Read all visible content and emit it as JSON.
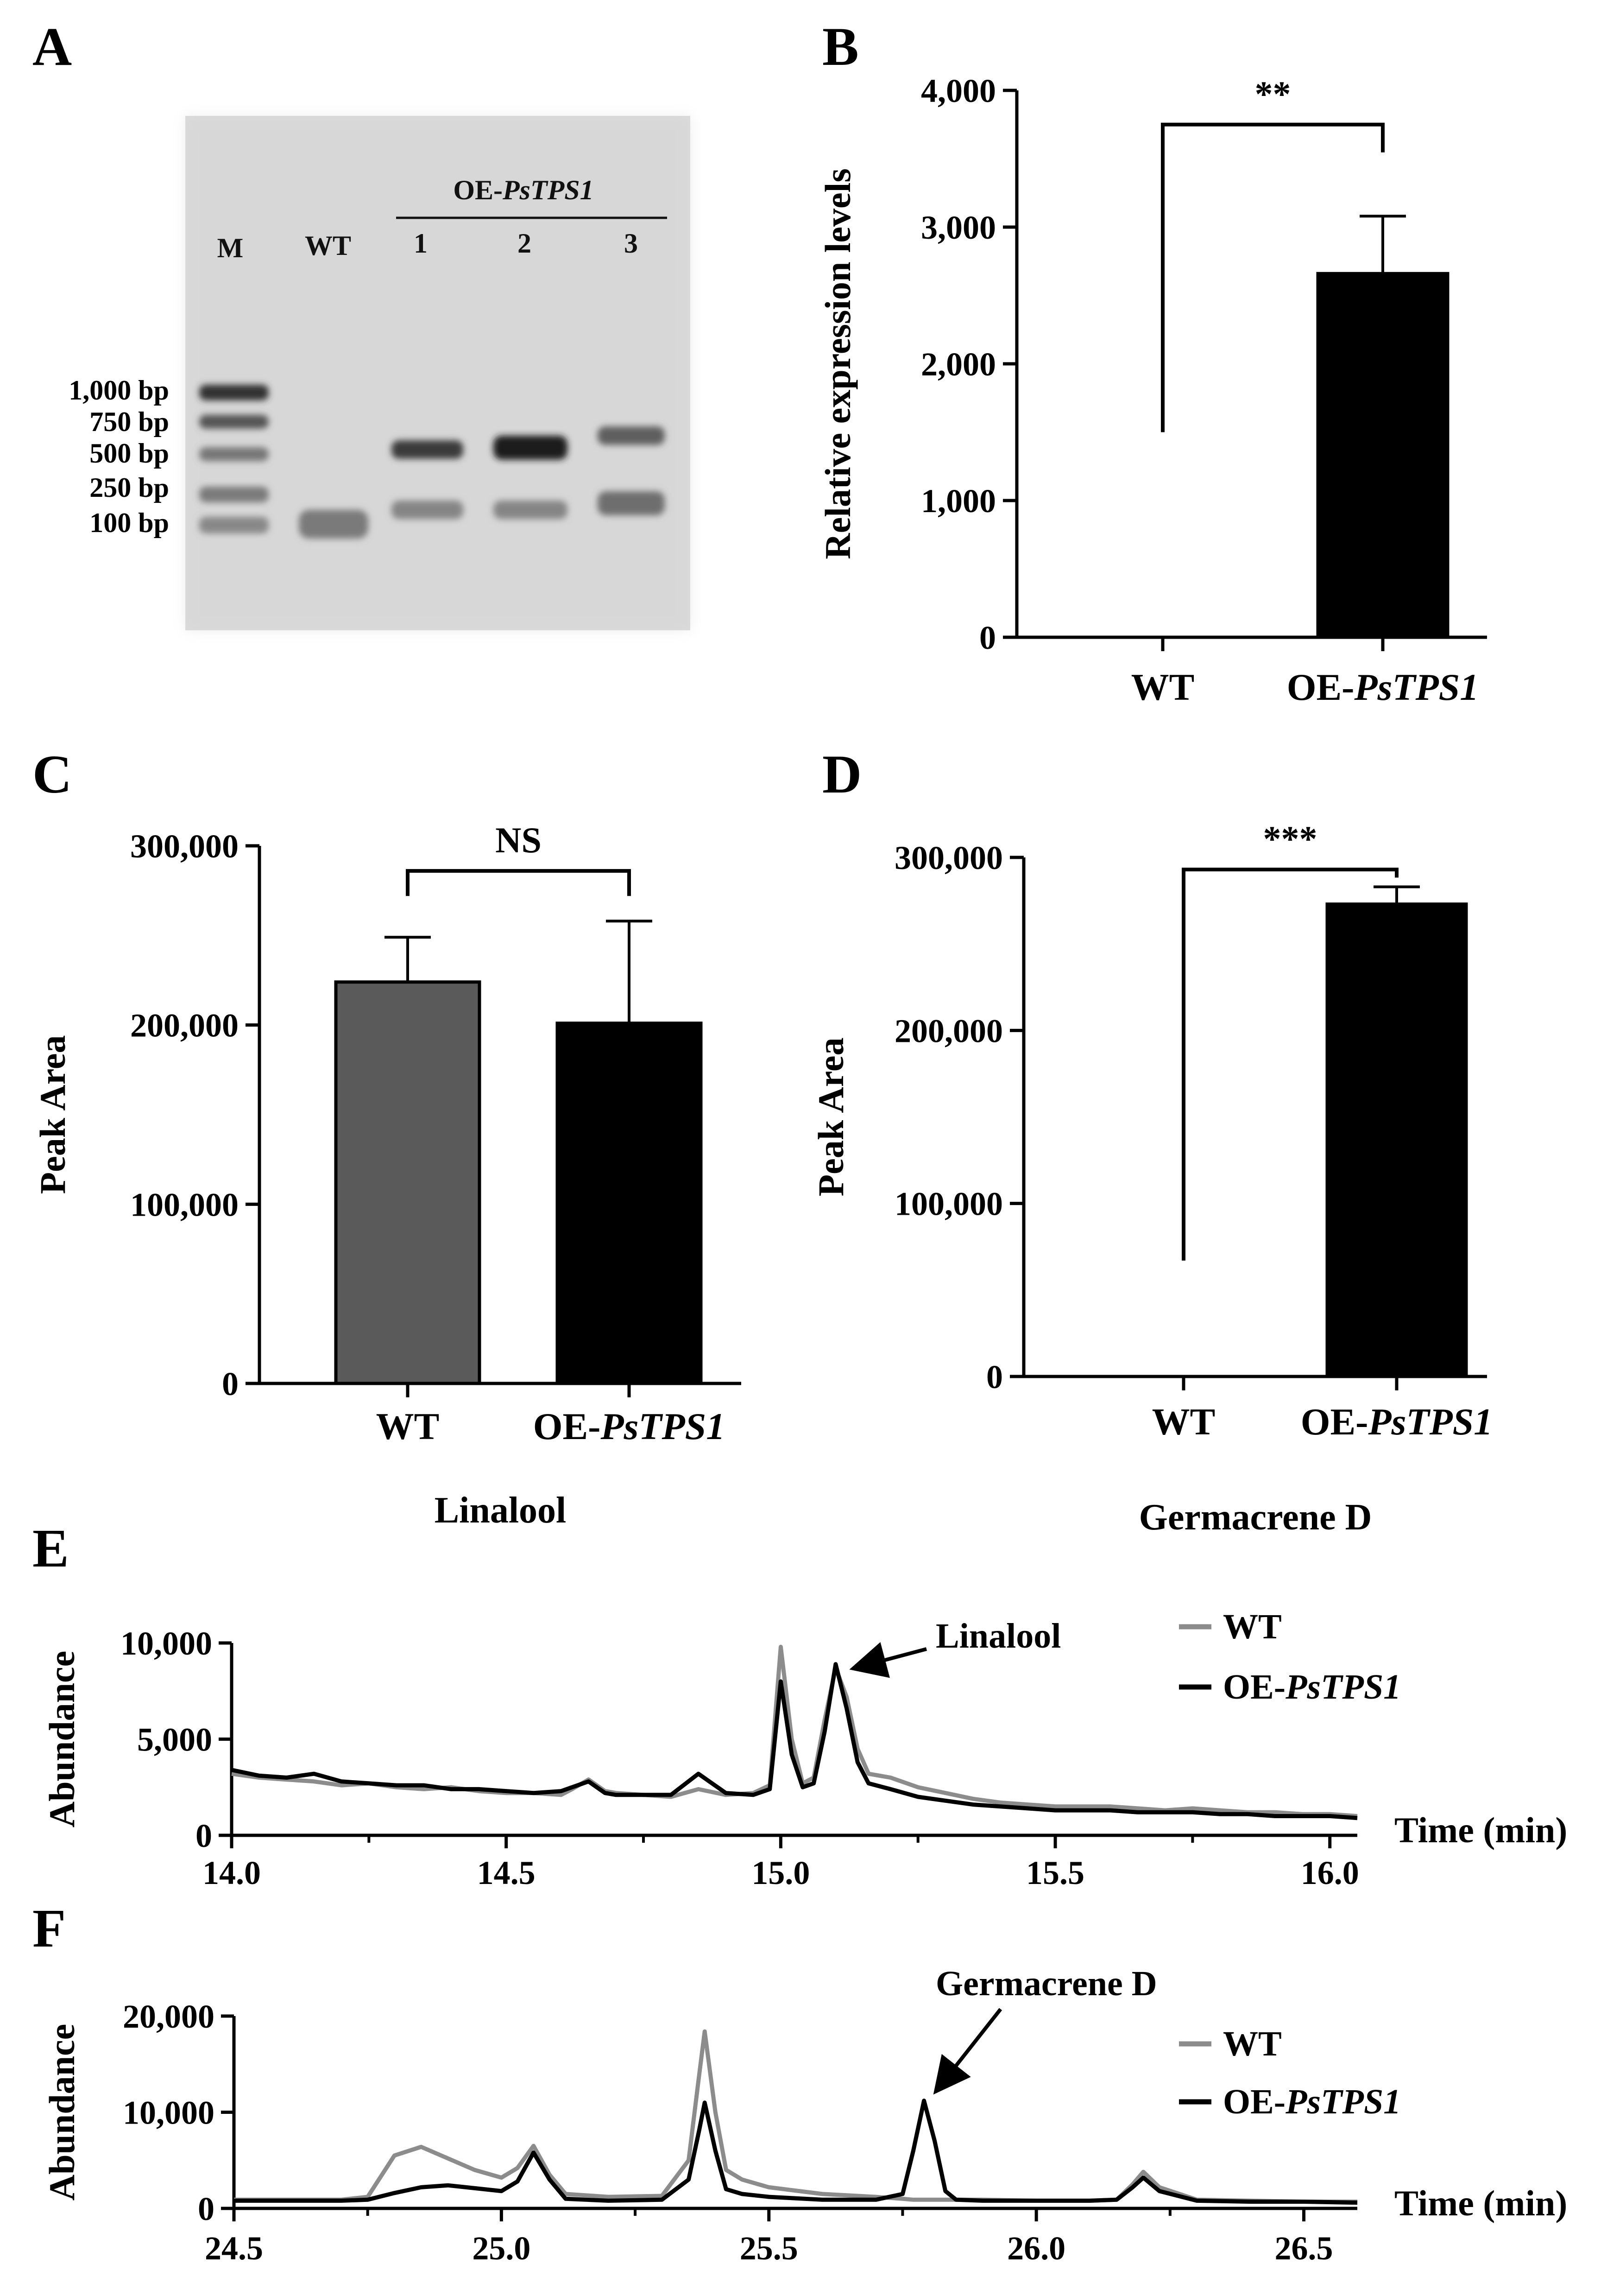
{
  "panels": {
    "A": {
      "letter": "A"
    },
    "B": {
      "letter": "B"
    },
    "C": {
      "letter": "C"
    },
    "D": {
      "letter": "D"
    },
    "E": {
      "letter": "E"
    },
    "F": {
      "letter": "F"
    }
  },
  "gel": {
    "lane_labels": [
      "M",
      "WT",
      "1",
      "2",
      "3"
    ],
    "group_label_prefix": "OE-",
    "group_label_gene": "PsTPS1",
    "ladder_labels": [
      "1,000 bp",
      "750 bp",
      "500 bp",
      "250 bp",
      "100 bp"
    ]
  },
  "chart_data": [
    {
      "panel": "B",
      "type": "bar",
      "categories": [
        "WT",
        "OE-PsTPS1"
      ],
      "category_parts": [
        {
          "plain": "WT",
          "italic": ""
        },
        {
          "plain": "OE-",
          "italic": "PsTPS1"
        }
      ],
      "values": [
        0,
        2660
      ],
      "errors": [
        0,
        420
      ],
      "bar_colors": [
        "#000000",
        "#000000"
      ],
      "ylabel": "Relative expression levels",
      "ylim": [
        0,
        4000
      ],
      "yticks": [
        0,
        1000,
        2000,
        3000,
        4000
      ],
      "ytick_labels": [
        "0",
        "1,000",
        "2,000",
        "3,000",
        "4,000"
      ],
      "significance": "**",
      "bracket_left_bottom": 1500,
      "bracket_top": 3750
    },
    {
      "panel": "C",
      "type": "bar",
      "categories": [
        "WT",
        "OE-PsTPS1"
      ],
      "category_parts": [
        {
          "plain": "WT",
          "italic": ""
        },
        {
          "plain": "OE-",
          "italic": "PsTPS1"
        }
      ],
      "values": [
        224000,
        201000
      ],
      "errors": [
        25000,
        57000
      ],
      "bar_colors": [
        "#5a5a5a",
        "#000000"
      ],
      "ylabel": "Peak Area",
      "ylim": [
        0,
        300000
      ],
      "yticks": [
        0,
        100000,
        200000,
        300000
      ],
      "ytick_labels": [
        "0",
        "100,000",
        "200,000",
        "300,000"
      ],
      "significance": "NS",
      "bracket_left_bottom": 272000,
      "bracket_right_bottom": 272000,
      "bracket_top": 286000,
      "caption": "Linalool"
    },
    {
      "panel": "D",
      "type": "bar",
      "categories": [
        "WT",
        "OE-PsTPS1"
      ],
      "category_parts": [
        {
          "plain": "WT",
          "italic": ""
        },
        {
          "plain": "OE-",
          "italic": "PsTPS1"
        }
      ],
      "values": [
        0,
        273000
      ],
      "errors": [
        0,
        10000
      ],
      "bar_colors": [
        "#000000",
        "#000000"
      ],
      "ylabel": "Peak Area",
      "ylim": [
        0,
        300000
      ],
      "yticks": [
        0,
        100000,
        200000,
        300000
      ],
      "ytick_labels": [
        "0",
        "100,000",
        "200,000",
        "300,000"
      ],
      "significance": "***",
      "bracket_left_bottom": 67000,
      "bracket_top": 293000,
      "caption": "Germacrene D"
    },
    {
      "panel": "E",
      "type": "line",
      "xlim": [
        14.0,
        16.05
      ],
      "xticks": [
        14.0,
        14.5,
        15.0,
        15.5,
        16.0
      ],
      "xtick_labels": [
        "14.0",
        "14.5",
        "15.0",
        "15.5",
        "16.0"
      ],
      "ylim": [
        0,
        10000
      ],
      "yticks": [
        0,
        5000,
        10000
      ],
      "ytick_labels": [
        "0",
        "5,000",
        "10,000"
      ],
      "ylabel": "Abundance",
      "xlabel": "Time (min)",
      "annotation": "Linalool",
      "annotation_target": [
        15.1,
        8600
      ],
      "legend_position": "top-right",
      "series": [
        {
          "name": "WT",
          "color": "#8c8c8c",
          "x": [
            14.0,
            14.05,
            14.1,
            14.15,
            14.2,
            14.25,
            14.3,
            14.35,
            14.4,
            14.45,
            14.5,
            14.55,
            14.6,
            14.62,
            14.65,
            14.68,
            14.7,
            14.75,
            14.8,
            14.85,
            14.9,
            14.95,
            14.98,
            15.0,
            15.02,
            15.04,
            15.06,
            15.08,
            15.1,
            15.12,
            15.14,
            15.16,
            15.2,
            15.25,
            15.3,
            15.35,
            15.4,
            15.45,
            15.5,
            15.55,
            15.6,
            15.65,
            15.7,
            15.75,
            15.8,
            15.85,
            15.9,
            15.95,
            16.0,
            16.05
          ],
          "y": [
            3200,
            3000,
            2900,
            2800,
            2600,
            2700,
            2500,
            2400,
            2500,
            2300,
            2200,
            2200,
            2100,
            2400,
            2900,
            2300,
            2200,
            2100,
            2000,
            2400,
            2100,
            2200,
            2600,
            9800,
            5000,
            2700,
            3000,
            6000,
            8700,
            7200,
            4500,
            3200,
            3000,
            2500,
            2200,
            1900,
            1700,
            1600,
            1500,
            1500,
            1500,
            1400,
            1300,
            1400,
            1300,
            1200,
            1200,
            1100,
            1100,
            1000
          ]
        },
        {
          "name": "OE-PsTPS1",
          "color": "#000000",
          "x": [
            14.0,
            14.05,
            14.1,
            14.15,
            14.2,
            14.25,
            14.3,
            14.35,
            14.4,
            14.45,
            14.5,
            14.55,
            14.6,
            14.62,
            14.65,
            14.68,
            14.7,
            14.75,
            14.8,
            14.85,
            14.9,
            14.95,
            14.98,
            15.0,
            15.02,
            15.04,
            15.06,
            15.08,
            15.1,
            15.12,
            15.14,
            15.16,
            15.2,
            15.25,
            15.3,
            15.35,
            15.4,
            15.45,
            15.5,
            15.55,
            15.6,
            15.65,
            15.7,
            15.75,
            15.8,
            15.85,
            15.9,
            15.95,
            16.0,
            16.05
          ],
          "y": [
            3400,
            3100,
            3000,
            3200,
            2800,
            2700,
            2600,
            2600,
            2400,
            2400,
            2300,
            2200,
            2300,
            2500,
            2800,
            2200,
            2100,
            2100,
            2100,
            3200,
            2200,
            2100,
            2400,
            8000,
            4200,
            2500,
            2700,
            5400,
            8900,
            6600,
            3800,
            2700,
            2400,
            2000,
            1800,
            1600,
            1500,
            1400,
            1300,
            1300,
            1300,
            1200,
            1200,
            1200,
            1100,
            1100,
            1000,
            1000,
            1000,
            900
          ]
        }
      ]
    },
    {
      "panel": "F",
      "type": "line",
      "xlim": [
        24.5,
        26.6
      ],
      "xticks": [
        24.5,
        25.0,
        25.5,
        26.0,
        26.5
      ],
      "xtick_labels": [
        "24.5",
        "25.0",
        "25.5",
        "26.0",
        "26.5"
      ],
      "ylim": [
        0,
        20000
      ],
      "yticks": [
        0,
        10000,
        20000
      ],
      "ytick_labels": [
        "0",
        "10,000",
        "20,000"
      ],
      "ylabel": "Abundance",
      "xlabel": "Time (min)",
      "annotation": "Germacrene D",
      "annotation_target": [
        25.79,
        11000
      ],
      "legend_position": "top-right",
      "series": [
        {
          "name": "WT",
          "color": "#8c8c8c",
          "x": [
            24.5,
            24.6,
            24.7,
            24.75,
            24.8,
            24.85,
            24.9,
            24.95,
            25.0,
            25.03,
            25.06,
            25.09,
            25.12,
            25.2,
            25.3,
            25.35,
            25.37,
            25.38,
            25.4,
            25.42,
            25.45,
            25.5,
            25.6,
            25.7,
            25.75,
            25.77,
            25.79,
            25.81,
            25.83,
            25.85,
            25.9,
            26.0,
            26.1,
            26.15,
            26.18,
            26.2,
            26.23,
            26.3,
            26.4,
            26.5,
            26.6
          ],
          "y": [
            900,
            900,
            900,
            1200,
            5500,
            6400,
            5200,
            4000,
            3200,
            4200,
            6500,
            3500,
            1500,
            1200,
            1300,
            5000,
            14000,
            18400,
            10000,
            4000,
            3000,
            2200,
            1500,
            1200,
            1000,
            900,
            900,
            900,
            900,
            900,
            900,
            800,
            800,
            900,
            2500,
            3800,
            2200,
            900,
            800,
            700,
            700
          ]
        },
        {
          "name": "OE-PsTPS1",
          "color": "#000000",
          "x": [
            24.5,
            24.6,
            24.7,
            24.75,
            24.8,
            24.85,
            24.9,
            24.95,
            25.0,
            25.03,
            25.06,
            25.09,
            25.12,
            25.2,
            25.3,
            25.35,
            25.37,
            25.38,
            25.4,
            25.42,
            25.45,
            25.5,
            25.6,
            25.7,
            25.75,
            25.77,
            25.79,
            25.81,
            25.83,
            25.85,
            25.9,
            26.0,
            26.1,
            26.15,
            26.18,
            26.2,
            26.23,
            26.3,
            26.4,
            26.5,
            26.6
          ],
          "y": [
            800,
            800,
            800,
            900,
            1600,
            2200,
            2400,
            2100,
            1800,
            2800,
            5800,
            3000,
            1000,
            800,
            900,
            3000,
            8200,
            11000,
            6000,
            2000,
            1500,
            1200,
            900,
            900,
            1500,
            6000,
            11200,
            7000,
            1800,
            900,
            800,
            800,
            800,
            900,
            2200,
            3200,
            1800,
            800,
            700,
            700,
            600
          ]
        }
      ]
    }
  ]
}
